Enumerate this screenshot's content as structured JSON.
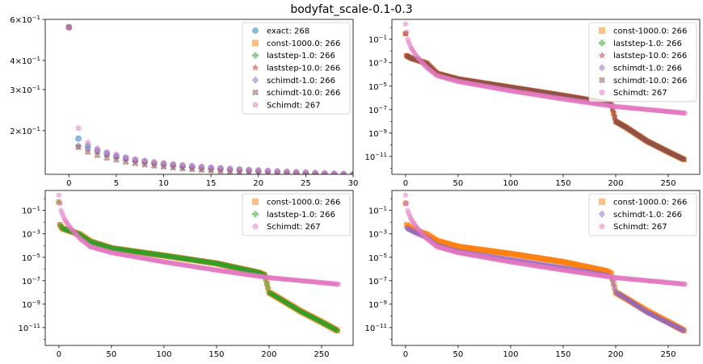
{
  "figure": {
    "title": "bodyfat_scale-0.1-0.3"
  },
  "colors": {
    "blue": "#1f77b4",
    "orange": "#ff7f0e",
    "green": "#2ca02c",
    "red": "#d62728",
    "purple": "#9467bd",
    "brown": "#8c564b",
    "pink": "#e377c2"
  },
  "chart_data": [
    {
      "type": "scatter",
      "panel": "top-left",
      "yscale": "log",
      "xlim": [
        -2.5,
        30
      ],
      "ylim": [
        0.13,
        0.6
      ],
      "xticks": [
        0,
        5,
        10,
        15,
        20,
        25,
        30
      ],
      "yticks": [
        {
          "value": 0.2,
          "base": "2×10",
          "exp": "−1"
        },
        {
          "value": 0.3,
          "base": "3×10",
          "exp": "−1"
        },
        {
          "value": 0.4,
          "base": "4×10",
          "exp": "−1"
        },
        {
          "value": 0.6,
          "base": "6×10",
          "exp": "−1"
        }
      ],
      "legend_position": "top-right",
      "series": [
        {
          "name": "exact: 268",
          "color": "blue",
          "marker": "circle",
          "values": [
            0.555,
            0.185,
            0.172,
            0.165,
            0.16,
            0.156,
            0.153,
            0.15,
            0.148,
            0.146,
            0.1445,
            0.143,
            0.1418,
            0.1405,
            0.1395,
            0.1385,
            0.1378,
            0.137,
            0.1363,
            0.1356,
            0.135,
            0.1344,
            0.1338,
            0.1332,
            0.1327,
            0.1322,
            0.1317,
            0.1312,
            0.1308,
            0.1304,
            0.13
          ]
        },
        {
          "name": "const-1000.0: 266",
          "color": "orange",
          "marker": "square"
        },
        {
          "name": "laststep-1.0: 266",
          "color": "green",
          "marker": "plus"
        },
        {
          "name": "laststep-10.0: 266",
          "color": "red",
          "marker": "star"
        },
        {
          "name": "schimdt-1.0: 266",
          "color": "purple",
          "marker": "diamond",
          "values": [
            0.555,
            0.172,
            0.168,
            0.163,
            0.158,
            0.154,
            0.151,
            0.148,
            0.146,
            0.144,
            0.1425,
            0.141,
            0.1398,
            0.1386,
            0.1376,
            0.1367,
            0.1359,
            0.1352,
            0.1345,
            0.1338,
            0.1332,
            0.1326,
            0.1321,
            0.1316,
            0.1311,
            0.1307,
            0.1303,
            0.1299,
            0.1296,
            0.1293,
            0.129
          ]
        },
        {
          "name": "schimdt-10.0: 266",
          "color": "brown",
          "marker": "x",
          "values": [
            0.555,
            0.17,
            0.162,
            0.157,
            0.153,
            0.15,
            0.147,
            0.145,
            0.143,
            0.1415,
            0.14,
            0.1388,
            0.1376,
            0.1366,
            0.1357,
            0.1349,
            0.1342,
            0.1335,
            0.1329,
            0.1323,
            0.1318,
            0.1313,
            0.1308,
            0.1304,
            0.13,
            0.1296,
            0.1293,
            0.1289,
            0.1286,
            0.1283,
            0.128
          ]
        },
        {
          "name": "Schimdt: 267",
          "color": "pink",
          "marker": "pentagon",
          "values": [
            0.555,
            0.205,
            0.178,
            0.168,
            0.162,
            0.158,
            0.154,
            0.151,
            0.149,
            0.147,
            0.1455,
            0.144,
            0.1428,
            0.1416,
            0.1405,
            0.1395,
            0.1386,
            0.1378,
            0.137,
            0.1363,
            0.1356,
            0.135,
            0.1344,
            0.1338,
            0.1333,
            0.1328,
            0.1323,
            0.1318,
            0.1314,
            0.131,
            0.1306
          ]
        }
      ]
    },
    {
      "type": "scatter",
      "panel": "top-right",
      "yscale": "log",
      "xlim": [
        -13,
        280
      ],
      "ylim": [
        3e-13,
        5
      ],
      "xticks": [
        0,
        50,
        100,
        150,
        200,
        250
      ],
      "yticks": [
        {
          "value": 0.1,
          "base": "10",
          "exp": "−1"
        },
        {
          "value": 0.001,
          "base": "10",
          "exp": "−3"
        },
        {
          "value": 1e-05,
          "base": "10",
          "exp": "−5"
        },
        {
          "value": 1e-07,
          "base": "10",
          "exp": "−7"
        },
        {
          "value": 1e-09,
          "base": "10",
          "exp": "−9"
        },
        {
          "value": 1e-11,
          "base": "10",
          "exp": "−11"
        }
      ],
      "legend_position": "top-right",
      "series": [
        {
          "name": "const-1000.0: 266",
          "color": "orange",
          "marker": "square"
        },
        {
          "name": "laststep-1.0: 266",
          "color": "green",
          "marker": "plus"
        },
        {
          "name": "laststep-10.0: 266",
          "color": "red",
          "marker": "star"
        },
        {
          "name": "schimdt-1.0: 266",
          "color": "purple",
          "marker": "diamond"
        },
        {
          "name": "schimdt-10.0: 266",
          "color": "brown",
          "marker": "x"
        },
        {
          "name": "Schimdt: 267",
          "color": "pink",
          "marker": "pentagon"
        }
      ],
      "curves": {
        "main": [
          [
            0,
            0.3
          ],
          [
            1,
            0.004
          ],
          [
            5,
            0.0025
          ],
          [
            10,
            0.0018
          ],
          [
            20,
            0.0009
          ],
          [
            30,
            0.00012
          ],
          [
            50,
            4e-05
          ],
          [
            100,
            8e-06
          ],
          [
            150,
            1.6e-06
          ],
          [
            190,
            4e-07
          ],
          [
            196,
            2.5e-07
          ],
          [
            200,
            1e-08
          ],
          [
            210,
            3e-09
          ],
          [
            230,
            2e-10
          ],
          [
            250,
            2.5e-11
          ],
          [
            266,
            5e-12
          ]
        ],
        "schimdt": [
          [
            0,
            2
          ],
          [
            1,
            0.4
          ],
          [
            2,
            0.1
          ],
          [
            5,
            0.02
          ],
          [
            10,
            0.004
          ],
          [
            20,
            0.0004
          ],
          [
            30,
            8e-05
          ],
          [
            50,
            2.5e-05
          ],
          [
            100,
            4e-06
          ],
          [
            150,
            8e-07
          ],
          [
            200,
            1.8e-07
          ],
          [
            266,
            5e-08
          ]
        ]
      }
    },
    {
      "type": "scatter",
      "panel": "bottom-left",
      "yscale": "log",
      "xlim": [
        -13,
        280
      ],
      "ylim": [
        3e-13,
        5
      ],
      "xticks": [
        0,
        50,
        100,
        150,
        200,
        250
      ],
      "yticks": [
        {
          "value": 0.1,
          "base": "10",
          "exp": "−1"
        },
        {
          "value": 0.001,
          "base": "10",
          "exp": "−3"
        },
        {
          "value": 1e-05,
          "base": "10",
          "exp": "−5"
        },
        {
          "value": 1e-07,
          "base": "10",
          "exp": "−7"
        },
        {
          "value": 1e-09,
          "base": "10",
          "exp": "−9"
        },
        {
          "value": 1e-11,
          "base": "10",
          "exp": "−11"
        }
      ],
      "legend_position": "top-right",
      "series": [
        {
          "name": "const-1000.0: 266",
          "color": "orange",
          "marker": "square"
        },
        {
          "name": "laststep-1.0: 266",
          "color": "green",
          "marker": "plus"
        },
        {
          "name": "Schimdt: 267",
          "color": "pink",
          "marker": "pentagon"
        }
      ],
      "curves": {
        "main": [
          [
            0,
            0.5
          ],
          [
            1,
            0.006
          ],
          [
            3,
            0.003
          ],
          [
            10,
            0.0018
          ],
          [
            20,
            0.0009
          ],
          [
            30,
            0.00022
          ],
          [
            50,
            6e-05
          ],
          [
            100,
            1.4e-05
          ],
          [
            150,
            3e-06
          ],
          [
            190,
            5e-07
          ],
          [
            196,
            3e-07
          ],
          [
            200,
            1e-08
          ],
          [
            210,
            3e-09
          ],
          [
            230,
            2.5e-10
          ],
          [
            250,
            3e-11
          ],
          [
            266,
            5e-12
          ]
        ],
        "schimdt": [
          [
            0,
            2
          ],
          [
            1,
            0.4
          ],
          [
            2,
            0.1
          ],
          [
            5,
            0.02
          ],
          [
            10,
            0.004
          ],
          [
            20,
            0.0004
          ],
          [
            30,
            8e-05
          ],
          [
            50,
            2.5e-05
          ],
          [
            100,
            4e-06
          ],
          [
            150,
            8e-07
          ],
          [
            200,
            1.8e-07
          ],
          [
            266,
            5e-08
          ]
        ]
      }
    },
    {
      "type": "scatter",
      "panel": "bottom-right",
      "yscale": "log",
      "xlim": [
        -13,
        280
      ],
      "ylim": [
        3e-13,
        5
      ],
      "xticks": [
        0,
        50,
        100,
        150,
        200,
        250
      ],
      "yticks": [
        {
          "value": 0.1,
          "base": "10",
          "exp": "−1"
        },
        {
          "value": 0.001,
          "base": "10",
          "exp": "−3"
        },
        {
          "value": 1e-05,
          "base": "10",
          "exp": "−5"
        },
        {
          "value": 1e-07,
          "base": "10",
          "exp": "−7"
        },
        {
          "value": 1e-09,
          "base": "10",
          "exp": "−9"
        },
        {
          "value": 1e-11,
          "base": "10",
          "exp": "−11"
        }
      ],
      "legend_position": "top-right",
      "series": [
        {
          "name": "const-1000.0: 266",
          "color": "orange",
          "marker": "square"
        },
        {
          "name": "schimdt-1.0: 266",
          "color": "purple",
          "marker": "diamond"
        },
        {
          "name": "Schimdt: 267",
          "color": "pink",
          "marker": "pentagon"
        }
      ],
      "curves": {
        "const": [
          [
            0,
            0.4
          ],
          [
            1,
            0.006
          ],
          [
            5,
            0.003
          ],
          [
            10,
            0.0018
          ],
          [
            20,
            0.0009
          ],
          [
            30,
            0.00025
          ],
          [
            50,
            8e-05
          ],
          [
            100,
            2e-05
          ],
          [
            150,
            4e-06
          ],
          [
            190,
            7e-07
          ],
          [
            196,
            4e-07
          ],
          [
            200,
            1e-08
          ],
          [
            210,
            3e-09
          ],
          [
            230,
            2.5e-10
          ],
          [
            250,
            3e-11
          ],
          [
            266,
            5e-12
          ]
        ],
        "schimdt1": [
          [
            0,
            0.4
          ],
          [
            1,
            0.003
          ],
          [
            5,
            0.002
          ],
          [
            10,
            0.0012
          ],
          [
            20,
            0.0005
          ],
          [
            30,
            0.0001
          ],
          [
            50,
            3e-05
          ],
          [
            100,
            6e-06
          ],
          [
            150,
            1.2e-06
          ],
          [
            190,
            3e-07
          ],
          [
            196,
            2e-07
          ],
          [
            200,
            1e-08
          ],
          [
            210,
            3e-09
          ],
          [
            230,
            2e-10
          ],
          [
            250,
            2.5e-11
          ],
          [
            266,
            5e-12
          ]
        ],
        "schimdt": [
          [
            0,
            2
          ],
          [
            1,
            0.4
          ],
          [
            2,
            0.1
          ],
          [
            5,
            0.02
          ],
          [
            10,
            0.004
          ],
          [
            20,
            0.0004
          ],
          [
            30,
            8e-05
          ],
          [
            50,
            2.5e-05
          ],
          [
            100,
            4e-06
          ],
          [
            150,
            8e-07
          ],
          [
            200,
            1.8e-07
          ],
          [
            266,
            5e-08
          ]
        ]
      }
    }
  ]
}
